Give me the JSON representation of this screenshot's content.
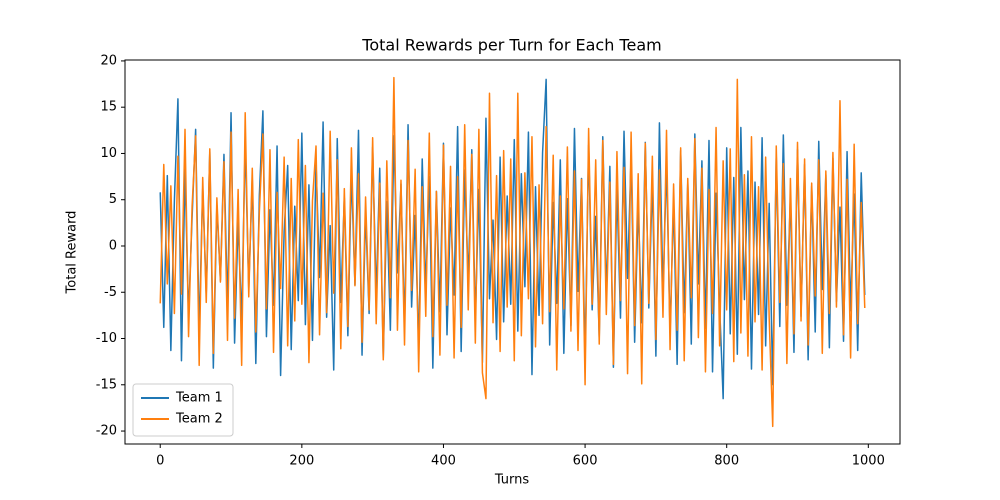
{
  "chart_data": {
    "type": "line",
    "title": "Total Rewards per Turn for Each Team",
    "x_label": "Turns",
    "y_label": "Total Reward",
    "x": [
      0,
      5,
      10,
      15,
      20,
      25,
      30,
      35,
      40,
      45,
      50,
      55,
      60,
      65,
      70,
      75,
      80,
      85,
      90,
      95,
      100,
      105,
      110,
      115,
      120,
      125,
      130,
      135,
      140,
      145,
      150,
      155,
      160,
      165,
      170,
      175,
      180,
      185,
      190,
      195,
      200,
      205,
      210,
      215,
      220,
      225,
      230,
      235,
      240,
      245,
      250,
      255,
      260,
      265,
      270,
      275,
      280,
      285,
      290,
      295,
      300,
      305,
      310,
      315,
      320,
      325,
      330,
      335,
      340,
      345,
      350,
      355,
      360,
      365,
      370,
      375,
      380,
      385,
      390,
      395,
      400,
      405,
      410,
      415,
      420,
      425,
      430,
      435,
      440,
      445,
      450,
      455,
      460,
      465,
      470,
      475,
      480,
      485,
      490,
      495,
      500,
      505,
      510,
      515,
      520,
      525,
      530,
      535,
      540,
      545,
      550,
      555,
      560,
      565,
      570,
      575,
      580,
      585,
      590,
      595,
      600,
      605,
      610,
      615,
      620,
      625,
      630,
      635,
      640,
      645,
      650,
      655,
      660,
      665,
      670,
      675,
      680,
      685,
      690,
      695,
      700,
      705,
      710,
      715,
      720,
      725,
      730,
      735,
      740,
      745,
      750,
      755,
      760,
      765,
      770,
      775,
      780,
      785,
      790,
      795,
      800,
      805,
      810,
      815,
      820,
      825,
      830,
      835,
      840,
      845,
      850,
      855,
      860,
      865,
      870,
      875,
      880,
      885,
      890,
      895,
      900,
      905,
      910,
      915,
      920,
      925,
      930,
      935,
      940,
      945,
      950,
      955,
      960,
      965,
      970,
      975,
      980,
      985,
      990,
      995
    ],
    "series": [
      {
        "name": "Team 1",
        "color": "#1f77b4",
        "values": [
          5.8,
          -8.8,
          7.6,
          -11.3,
          4.9,
          15.9,
          -12.4,
          8.3,
          -7.6,
          3.1,
          12.6,
          -9.4,
          6.2,
          -5.1,
          10.2,
          -13.2,
          4.4,
          -3.7,
          9.9,
          -6.8,
          14.4,
          -10.5,
          2.7,
          -8.1,
          11.3,
          -4.6,
          7.2,
          -12.7,
          5.5,
          14.6,
          -9.8,
          3.9,
          -6.4,
          10.8,
          -14,
          1.6,
          8.7,
          -11.2,
          4.3,
          -5.9,
          12.2,
          -8.5,
          6.6,
          -10.2,
          9.1,
          -3.4,
          13.4,
          -7.7,
          2.2,
          -13.4,
          11.6,
          -6.1,
          5.2,
          -9.7,
          7.9,
          -4.2,
          12.5,
          -11.8,
          3.6,
          -7.3,
          10.7,
          -5.6,
          8.4,
          -12.1,
          4.8,
          -9.1,
          11.9,
          -2.9,
          6.7,
          -8.8,
          13.1,
          -6.6,
          3.3,
          -10.9,
          9.4,
          -4.8,
          7.5,
          -13.2,
          5.9,
          -7.1,
          11.1,
          -9.6,
          4.1,
          -5.3,
          12.9,
          -11.4,
          8.2,
          -3.8,
          10.4,
          -7.9,
          6.1,
          -12.6,
          13.8,
          -5.7,
          2.8,
          -10.1,
          9.6,
          -8.2,
          5.4,
          -6.3,
          11.5,
          -9.2,
          7.8,
          -4.4,
          12.3,
          -13.9,
          6.4,
          -7.5,
          10.1,
          18,
          -10.7,
          4.7,
          -6.2,
          9.3,
          -11.6,
          5.1,
          -8.6,
          12.7,
          -4.9,
          7.3,
          -12.2,
          10.9,
          -6.9,
          3.2,
          -9.9,
          11.8,
          -5.4,
          8.6,
          -13.1,
          6.3,
          -7.8,
          12.4,
          -3.5,
          9.8,
          -10.4,
          4.5,
          -8.3,
          11.2,
          -6.7,
          7.1,
          -11.9,
          13.3,
          -5.2,
          8.9,
          -9.4,
          4.9,
          -12.8,
          10.3,
          -7.2,
          6.8,
          -10.6,
          12.1,
          -4.1,
          9.2,
          -8.9,
          11.4,
          -13.6,
          5.7,
          -6.5,
          -16.5,
          10.6,
          -9.5,
          7.4,
          -11.7,
          12.8,
          -5.8,
          8.1,
          -13.3,
          6.9,
          -7.4,
          11.7,
          -10.8,
          4.6,
          -15,
          9.7,
          -8.7,
          12,
          -6.4,
          5.3,
          -11.5,
          10.4,
          -7.6,
          8.8,
          -12.3,
          6.5,
          -9.3,
          11.3,
          -4.7,
          7.7,
          -11,
          9.5,
          -6,
          4.2,
          -10.3,
          10.2,
          -7,
          5.6,
          -11.3,
          7.9,
          -5.3
        ]
      },
      {
        "name": "Team 2",
        "color": "#ff7f0e",
        "values": [
          -6.2,
          8.8,
          -4.1,
          6.5,
          -7.3,
          9.7,
          -5.2,
          12.6,
          -9.8,
          4.3,
          11.9,
          -12.9,
          7.4,
          -6.1,
          10.5,
          -11.6,
          5.2,
          -3.9,
          9.1,
          -10.2,
          12.3,
          -7.8,
          6.1,
          -12.9,
          14.4,
          -5.5,
          8.4,
          -9.3,
          3.7,
          12.1,
          -6.8,
          10.4,
          -11.5,
          5.8,
          -4.6,
          9.6,
          -10.8,
          7.3,
          -8.1,
          11.5,
          -6.3,
          8.7,
          -12.6,
          4.9,
          10.8,
          -9.6,
          5.7,
          -7.2,
          12.4,
          -5.1,
          9.3,
          -11.1,
          6.2,
          -8.7,
          10.6,
          -4.3,
          7.8,
          -10.4,
          5.3,
          -6.9,
          11.7,
          -8.4,
          6.8,
          -12.3,
          9.2,
          -5.6,
          18.2,
          -9.1,
          7.1,
          -10.7,
          11.4,
          -4.8,
          8.3,
          -13.6,
          6.4,
          -7.6,
          12.2,
          -9.8,
          5.9,
          -11.8,
          10.9,
          -6.4,
          8.6,
          -12.1,
          7.5,
          -8.8,
          13.1,
          -6.9,
          9.9,
          -10.5,
          12.6,
          -13.7,
          -16.5,
          16.5,
          -8.3,
          7.6,
          -11.4,
          10.3,
          -6.6,
          9.4,
          -12.4,
          16.5,
          -9.7,
          7.9,
          -5.7,
          11.8,
          -10.9,
          6.6,
          -8.4,
          12.9,
          -7.1,
          9.8,
          -13.4,
          5.4,
          -6.8,
          10.7,
          -9.2,
          8.1,
          -11.3,
          7.2,
          -15,
          12.7,
          -6.3,
          9.3,
          -10.6,
          11.4,
          -7.4,
          6.9,
          -12.8,
          10.2,
          -5.9,
          8.5,
          -13.8,
          12.3,
          -8.6,
          7.8,
          -14.9,
          11.1,
          -6.2,
          9.7,
          -10.1,
          8.2,
          -7.7,
          12.5,
          -11.2,
          6.7,
          -9.1,
          10.6,
          -12.4,
          7.3,
          -5.6,
          11.6,
          -9.9,
          8.4,
          -13.6,
          6.1,
          -7.3,
          12.8,
          -10.8,
          9.2,
          -6.9,
          10.5,
          -12.5,
          18,
          -9.4,
          7.7,
          -11.9,
          11.8,
          -8.2,
          6.4,
          -13.4,
          9.6,
          -7.8,
          -19.5,
          10.8,
          -6.1,
          8.9,
          -12.7,
          7.3,
          -9.5,
          11.2,
          -8.1,
          9.4,
          -10.7,
          6.8,
          -5.4,
          9.3,
          -11.6,
          8.1,
          -7.3,
          10.1,
          -6.6,
          15.7,
          -9.6,
          7.2,
          -12.1,
          11,
          -8.4,
          4.7,
          -6.7
        ]
      }
    ],
    "xlim": [
      -49.75,
      1044.75
    ],
    "ylim": [
      -21.4,
      20.1
    ],
    "xticks": [
      0,
      200,
      400,
      600,
      800,
      1000
    ],
    "yticks": [
      -20,
      -15,
      -10,
      -5,
      0,
      5,
      10,
      15,
      20
    ],
    "legend": "lower left"
  }
}
